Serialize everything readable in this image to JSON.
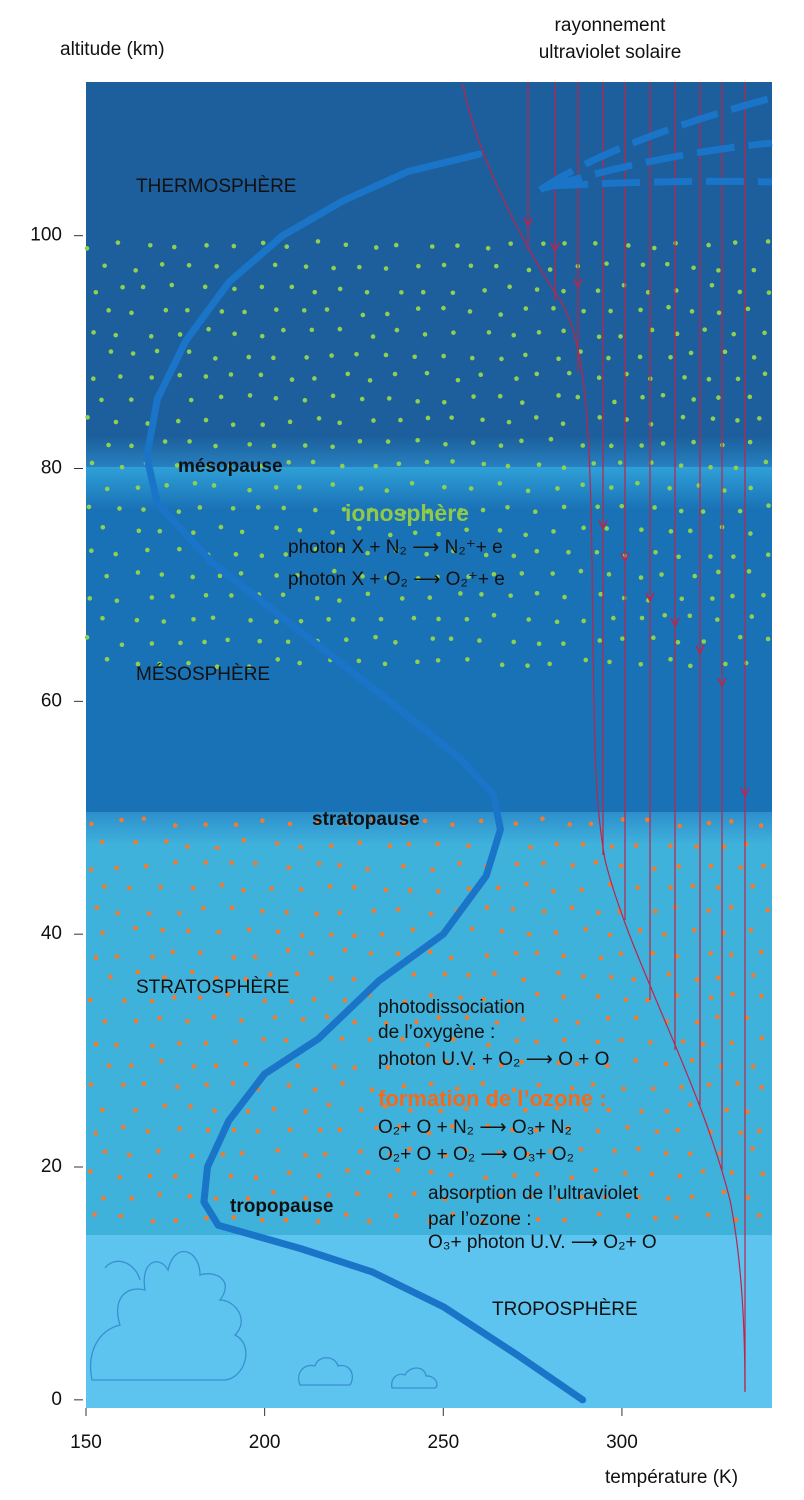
{
  "chart_data": {
    "type": "line",
    "title_lines": [
      "rayonnement",
      "ultraviolet solaire"
    ],
    "y_label": "altitude (km)",
    "x_label": "température (K)",
    "xlim": [
      150,
      342
    ],
    "ylim": [
      -0.7,
      113.2
    ],
    "xticks": [
      150,
      200,
      250,
      300
    ],
    "yticks": [
      0,
      20,
      40,
      60,
      80,
      100
    ],
    "series": [
      {
        "color": "#1a74c8",
        "x": [
          289,
          270,
          250,
          230,
          210,
          187,
          183,
          184,
          190,
          200,
          215,
          232,
          250,
          262,
          266,
          264,
          255,
          235,
          210,
          185,
          170,
          167,
          170,
          178,
          190,
          205,
          222,
          240,
          260
        ],
        "values": [
          0,
          4,
          8,
          11,
          13,
          15,
          17,
          20,
          24,
          28,
          31,
          36,
          40,
          45,
          49,
          52,
          55,
          60,
          66,
          72,
          77,
          81,
          86,
          91,
          96,
          100,
          103,
          105.5,
          107
        ]
      }
    ],
    "annotations": [
      "THERMOSPHÈRE",
      "mésopause",
      "ionosphère",
      "photon X + N₂ ⟶ N₂⁺+ e",
      "photon X + O₂ ⟶ O₂⁺+ e",
      "MÉSOSPHÈRE",
      "stratopause",
      "STRATOSPHÈRE",
      "photodissociation",
      "de l’oxygène :",
      "photon U.V. + O₂ ⟶ O + O",
      "formation de l’ozone :",
      "O₂+ O + N₂ ⟶ O₃+ N₂",
      "O₂+ O + O₂ ⟶ O₃+ O₂",
      "tropopause",
      "absorption de l’ultraviolet",
      "par l’ozone :",
      "O₃+ photon U.V. ⟶ O₂+ O",
      "TROPOSPHÈRE"
    ]
  }
}
